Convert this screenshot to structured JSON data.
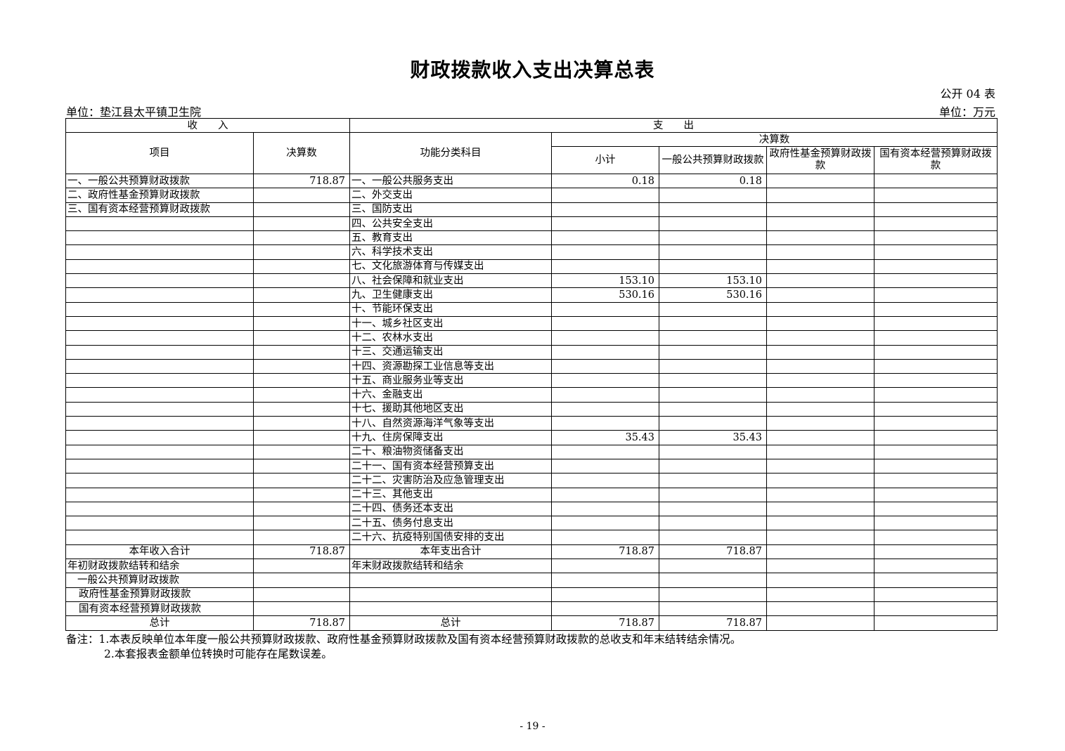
{
  "title": "财政拨款收入支出决算总表",
  "table_code": "公开 04 表",
  "unit_org": "单位：垫江县太平镇卫生院",
  "unit_money": "单位：万元",
  "header": {
    "income": "收　　入",
    "expense": "支　　出",
    "item": "项目",
    "amount": "决算数",
    "func": "功能分类科目",
    "final": "决算数",
    "subtotal": "小计",
    "general": "一般公共预算财政拨款",
    "gov_fund": "政府性基金预算财政拨款",
    "state_capital": "国有资本经营预算财政拨款"
  },
  "rows": [
    [
      "一、一般公共预算财政拨款",
      "718.87",
      "一、一般公共服务支出",
      "0.18",
      "0.18",
      "",
      ""
    ],
    [
      "二、政府性基金预算财政拨款",
      "",
      "二、外交支出",
      "",
      "",
      "",
      ""
    ],
    [
      "三、国有资本经营预算财政拨款",
      "",
      "三、国防支出",
      "",
      "",
      "",
      ""
    ],
    [
      "",
      "",
      "四、公共安全支出",
      "",
      "",
      "",
      ""
    ],
    [
      "",
      "",
      "五、教育支出",
      "",
      "",
      "",
      ""
    ],
    [
      "",
      "",
      "六、科学技术支出",
      "",
      "",
      "",
      ""
    ],
    [
      "",
      "",
      "七、文化旅游体育与传媒支出",
      "",
      "",
      "",
      ""
    ],
    [
      "",
      "",
      "八、社会保障和就业支出",
      "153.10",
      "153.10",
      "",
      ""
    ],
    [
      "",
      "",
      "九、卫生健康支出",
      "530.16",
      "530.16",
      "",
      ""
    ],
    [
      "",
      "",
      "十、节能环保支出",
      "",
      "",
      "",
      ""
    ],
    [
      "",
      "",
      "十一、城乡社区支出",
      "",
      "",
      "",
      ""
    ],
    [
      "",
      "",
      "十二、农林水支出",
      "",
      "",
      "",
      ""
    ],
    [
      "",
      "",
      "十三、交通运输支出",
      "",
      "",
      "",
      ""
    ],
    [
      "",
      "",
      "十四、资源勘探工业信息等支出",
      "",
      "",
      "",
      ""
    ],
    [
      "",
      "",
      "十五、商业服务业等支出",
      "",
      "",
      "",
      ""
    ],
    [
      "",
      "",
      "十六、金融支出",
      "",
      "",
      "",
      ""
    ],
    [
      "",
      "",
      "十七、援助其他地区支出",
      "",
      "",
      "",
      ""
    ],
    [
      "",
      "",
      "十八、自然资源海洋气象等支出",
      "",
      "",
      "",
      ""
    ],
    [
      "",
      "",
      "十九、住房保障支出",
      "35.43",
      "35.43",
      "",
      ""
    ],
    [
      "",
      "",
      "二十、粮油物资储备支出",
      "",
      "",
      "",
      ""
    ],
    [
      "",
      "",
      "二十一、国有资本经营预算支出",
      "",
      "",
      "",
      ""
    ],
    [
      "",
      "",
      "二十二、灾害防治及应急管理支出",
      "",
      "",
      "",
      ""
    ],
    [
      "",
      "",
      "二十三、其他支出",
      "",
      "",
      "",
      ""
    ],
    [
      "",
      "",
      "二十四、债务还本支出",
      "",
      "",
      "",
      ""
    ],
    [
      "",
      "",
      "二十五、债务付息支出",
      "",
      "",
      "",
      ""
    ],
    [
      "",
      "",
      "二十六、抗疫特别国债安排的支出",
      "",
      "",
      "",
      ""
    ],
    [
      "本年收入合计",
      "718.87",
      "本年支出合计",
      "718.87",
      "718.87",
      "",
      ""
    ],
    [
      "年初财政拨款结转和结余",
      "",
      "年末财政拨款结转和结余",
      "",
      "",
      "",
      ""
    ],
    [
      "一般公共预算财政拨款",
      "",
      "",
      "",
      "",
      "",
      ""
    ],
    [
      "政府性基金预算财政拨款",
      "",
      "",
      "",
      "",
      "",
      ""
    ],
    [
      "国有资本经营预算财政拨款",
      "",
      "",
      "",
      "",
      "",
      ""
    ],
    [
      "总计",
      "718.87",
      "总计",
      "718.87",
      "718.87",
      "",
      ""
    ]
  ],
  "notes": [
    "备注：1.本表反映单位本年度一般公共预算财政拨款、政府性基金预算财政拨款及国有资本经营预算财政拨款的总收支和年末结转结余情况。",
    "2.本套报表金额单位转换时可能存在尾数误差。"
  ],
  "page_number": "- 19 -"
}
